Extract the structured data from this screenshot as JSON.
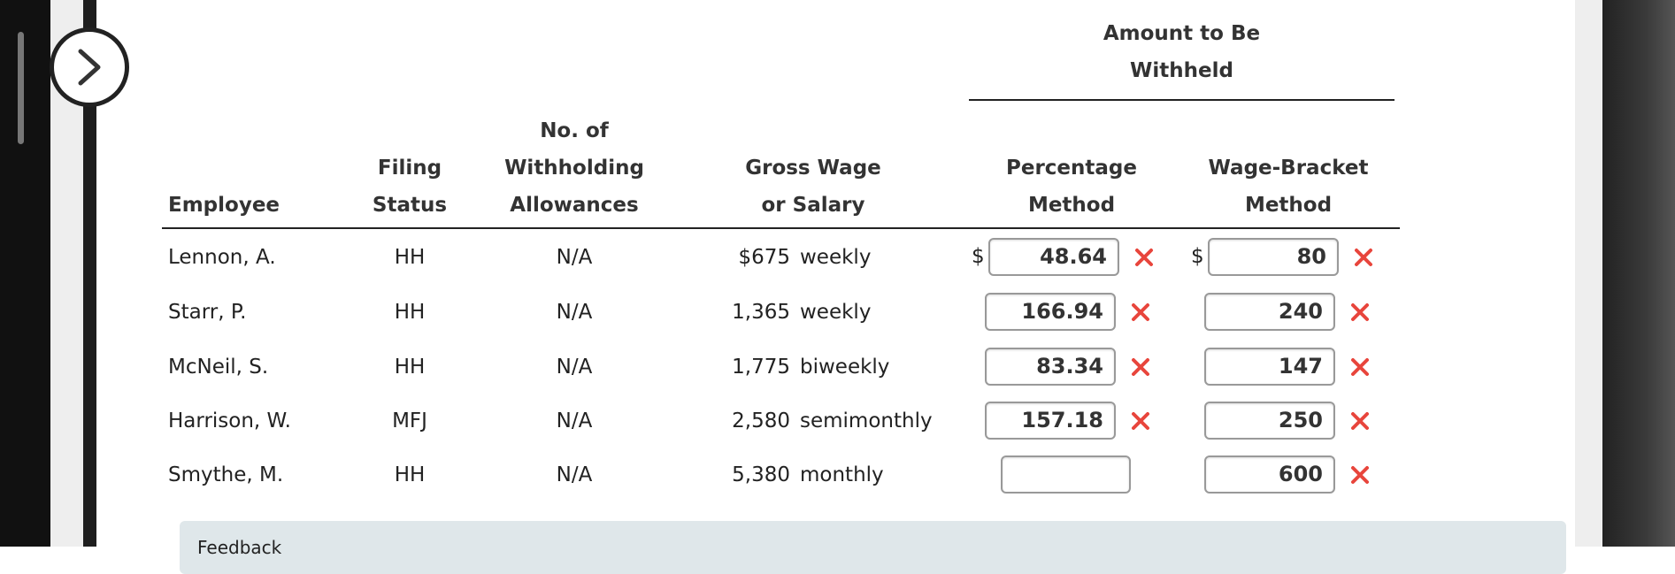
{
  "header": {
    "group_title": [
      "Amount to Be",
      "Withheld"
    ],
    "columns": [
      [
        "Employee"
      ],
      [
        "Filing",
        "Status"
      ],
      [
        "No. of",
        "Withholding",
        "Allowances"
      ],
      [
        "Gross Wage",
        "or Salary"
      ],
      [
        "Percentage",
        "Method"
      ],
      [
        "Wage-Bracket",
        "Method"
      ]
    ]
  },
  "table": {
    "rows": [
      {
        "employee": "Lennon, A.",
        "filing_status": "HH",
        "allowances": "N/A",
        "gross_wage": "$675",
        "period": "weekly",
        "percentage_prefix": "$",
        "percentage_method": "48.64",
        "wage_bracket_prefix": "$",
        "wage_bracket_method": "80"
      },
      {
        "employee": "Starr, P.",
        "filing_status": "HH",
        "allowances": "N/A",
        "gross_wage": "1,365",
        "period": "weekly",
        "percentage_method": "166.94",
        "wage_bracket_method": "240"
      },
      {
        "employee": "McNeil, S.",
        "filing_status": "HH",
        "allowances": "N/A",
        "gross_wage": "1,775",
        "period": "biweekly",
        "percentage_method": "83.34",
        "wage_bracket_method": "147"
      },
      {
        "employee": "Harrison, W.",
        "filing_status": "MFJ",
        "allowances": "N/A",
        "gross_wage": "2,580",
        "period": "semimonthly",
        "percentage_method": "157.18",
        "wage_bracket_method": "250"
      },
      {
        "employee": "Smythe, M.",
        "filing_status": "HH",
        "allowances": "N/A",
        "gross_wage": "5,380",
        "period": "monthly",
        "wage_bracket_method": "600"
      }
    ]
  },
  "feedback": {
    "title": "Feedback"
  }
}
